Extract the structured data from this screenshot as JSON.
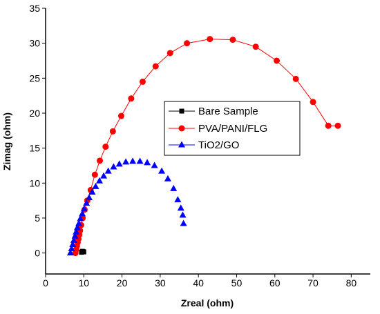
{
  "chart_data": {
    "type": "scatter",
    "xlabel": "Zreal (ohm)",
    "ylabel": "Zimag (ohm)",
    "xlim": [
      0,
      85
    ],
    "ylim": [
      -3,
      35
    ],
    "xticks": [
      0,
      10,
      20,
      30,
      40,
      50,
      60,
      70,
      80
    ],
    "yticks": [
      0,
      5,
      10,
      15,
      20,
      25,
      30,
      35
    ],
    "grid": false,
    "legend_position": "center",
    "series": [
      {
        "name": "Bare Sample",
        "marker": "square",
        "color": "#000000",
        "line": false,
        "x": [
          9.4,
          9.6,
          9.8,
          10.0
        ],
        "y": [
          0.1,
          0.25,
          0.2,
          0.15
        ]
      },
      {
        "name": "PVA/PANI/FLG",
        "marker": "circle",
        "color": "#ff0000",
        "line": true,
        "x": [
          7.8,
          8.0,
          8.2,
          8.4,
          8.6,
          8.8,
          9.0,
          9.3,
          9.7,
          10.2,
          10.9,
          11.8,
          12.9,
          14.2,
          15.7,
          17.6,
          19.8,
          22.4,
          25.4,
          28.8,
          32.6,
          37.0,
          43.0,
          49.0,
          55.0,
          60.5,
          65.5,
          70.0,
          74.0,
          76.5
        ],
        "y": [
          0.0,
          0.5,
          1.0,
          1.5,
          2.0,
          2.6,
          3.2,
          4.0,
          5.0,
          6.2,
          7.5,
          9.0,
          11.2,
          13.2,
          15.2,
          17.4,
          19.6,
          22.1,
          24.5,
          26.7,
          28.6,
          30.0,
          30.6,
          30.5,
          29.5,
          27.5,
          24.9,
          21.6,
          18.2,
          18.2
        ]
      },
      {
        "name": "TiO2/GO",
        "marker": "triangle",
        "color": "#0000ff",
        "line": false,
        "x": [
          6.5,
          6.8,
          7.1,
          7.4,
          7.7,
          8.0,
          8.3,
          8.7,
          9.1,
          9.6,
          10.1,
          10.7,
          11.4,
          12.2,
          13.1,
          14.1,
          15.2,
          16.4,
          17.8,
          19.3,
          21.0,
          22.8,
          24.7,
          26.6,
          28.5,
          30.4,
          32.0,
          33.5,
          34.6,
          35.4,
          35.9,
          36.1
        ],
        "y": [
          0.0,
          0.6,
          1.2,
          1.8,
          2.4,
          3.0,
          3.6,
          4.2,
          4.9,
          5.6,
          6.3,
          7.1,
          7.9,
          8.7,
          9.5,
          10.3,
          11.0,
          11.7,
          12.3,
          12.7,
          13.0,
          13.1,
          13.1,
          12.9,
          12.5,
          11.7,
          10.6,
          9.2,
          7.6,
          6.4,
          5.4,
          4.2
        ]
      }
    ]
  }
}
